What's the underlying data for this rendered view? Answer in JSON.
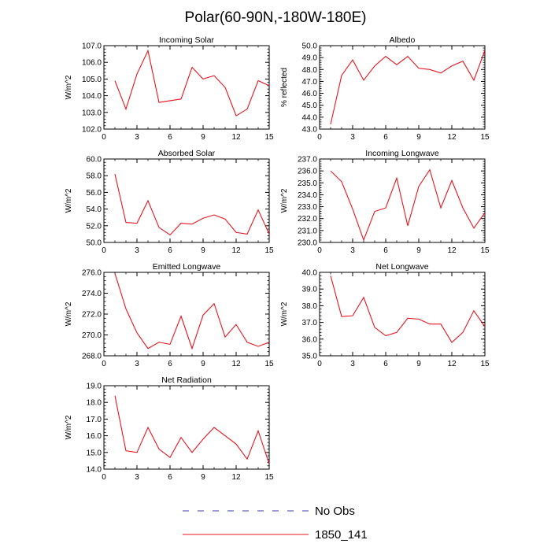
{
  "figure": {
    "title": "Polar(60-90N,-180W-180E)"
  },
  "legend": {
    "items": [
      {
        "label": "No Obs",
        "color": "#3d3da8",
        "dash": true
      },
      {
        "label": "1850_141",
        "color": "#e8141e",
        "dash": false
      }
    ]
  },
  "chart_data": [
    {
      "type": "line",
      "title": "Incoming Solar",
      "ylabel": "W/m^2",
      "xlim": [
        0,
        15
      ],
      "xticks": [
        "0",
        "3",
        "6",
        "9",
        "12",
        "15"
      ],
      "ylim": [
        102.0,
        107.0
      ],
      "yticks": [
        "102.0",
        "103.0",
        "104.0",
        "105.0",
        "106.0",
        "107.0"
      ],
      "x": [
        1,
        2,
        3,
        4,
        5,
        6,
        7,
        8,
        9,
        10,
        11,
        12,
        13,
        14,
        15
      ],
      "series": [
        {
          "name": "1850_141",
          "color": "#e8141e",
          "values": [
            104.9,
            103.2,
            105.3,
            106.7,
            103.6,
            103.7,
            103.8,
            105.7,
            105.0,
            105.2,
            104.5,
            102.8,
            103.2,
            104.9,
            104.6
          ]
        }
      ]
    },
    {
      "type": "line",
      "title": "Albedo",
      "ylabel": "% reflected",
      "xlim": [
        0,
        15
      ],
      "xticks": [
        "0",
        "3",
        "6",
        "9",
        "12",
        "15"
      ],
      "ylim": [
        43.0,
        50.0
      ],
      "yticks": [
        "43.0",
        "44.0",
        "45.0",
        "46.0",
        "47.0",
        "48.0",
        "49.0",
        "50.0"
      ],
      "x": [
        1,
        2,
        3,
        4,
        5,
        6,
        7,
        8,
        9,
        10,
        11,
        12,
        13,
        14,
        15
      ],
      "series": [
        {
          "name": "1850_141",
          "color": "#e8141e",
          "values": [
            43.4,
            47.5,
            48.8,
            47.1,
            48.3,
            49.1,
            48.4,
            49.1,
            48.1,
            48.0,
            47.7,
            48.3,
            48.7,
            47.1,
            49.6
          ]
        }
      ]
    },
    {
      "type": "line",
      "title": "Absorbed Solar",
      "ylabel": "W/m^2",
      "xlim": [
        0,
        15
      ],
      "xticks": [
        "0",
        "3",
        "6",
        "9",
        "12",
        "15"
      ],
      "ylim": [
        50.0,
        60.0
      ],
      "yticks": [
        "50.0",
        "52.0",
        "54.0",
        "56.0",
        "58.0",
        "60.0"
      ],
      "x": [
        1,
        2,
        3,
        4,
        5,
        6,
        7,
        8,
        9,
        10,
        11,
        12,
        13,
        14,
        15
      ],
      "series": [
        {
          "name": "1850_141",
          "color": "#e8141e",
          "values": [
            58.2,
            52.4,
            52.3,
            55.0,
            51.8,
            50.9,
            52.3,
            52.2,
            52.9,
            53.3,
            52.8,
            51.2,
            51.0,
            53.9,
            51.0
          ]
        }
      ]
    },
    {
      "type": "line",
      "title": "Incoming Longwave",
      "ylabel": "W/m^2",
      "xlim": [
        0,
        15
      ],
      "xticks": [
        "0",
        "3",
        "6",
        "9",
        "12",
        "15"
      ],
      "ylim": [
        230.0,
        237.0
      ],
      "yticks": [
        "230.0",
        "231.0",
        "232.0",
        "233.0",
        "234.0",
        "235.0",
        "236.0",
        "237.0"
      ],
      "x": [
        1,
        2,
        3,
        4,
        5,
        6,
        7,
        8,
        9,
        10,
        11,
        12,
        13,
        14,
        15
      ],
      "series": [
        {
          "name": "1850_141",
          "color": "#e8141e",
          "values": [
            236.0,
            235.1,
            232.8,
            230.2,
            232.6,
            232.9,
            235.4,
            231.4,
            234.7,
            236.1,
            232.9,
            235.2,
            232.9,
            231.2,
            232.5
          ]
        }
      ]
    },
    {
      "type": "line",
      "title": "Emitted Longwave",
      "ylabel": "W/m^2",
      "xlim": [
        0,
        15
      ],
      "xticks": [
        "0",
        "3",
        "6",
        "9",
        "12",
        "15"
      ],
      "ylim": [
        268.0,
        276.0
      ],
      "yticks": [
        "268.0",
        "270.0",
        "272.0",
        "274.0",
        "276.0"
      ],
      "x": [
        1,
        2,
        3,
        4,
        5,
        6,
        7,
        8,
        9,
        10,
        11,
        12,
        13,
        14,
        15
      ],
      "series": [
        {
          "name": "1850_141",
          "color": "#e8141e",
          "values": [
            275.9,
            272.5,
            270.2,
            268.7,
            269.3,
            269.1,
            271.8,
            268.7,
            271.9,
            273.0,
            269.8,
            271.0,
            269.3,
            268.9,
            269.3
          ]
        }
      ]
    },
    {
      "type": "line",
      "title": "Net Longwave",
      "ylabel": "W/m^2",
      "xlim": [
        0,
        15
      ],
      "xticks": [
        "0",
        "3",
        "6",
        "9",
        "12",
        "15"
      ],
      "ylim": [
        35.0,
        40.0
      ],
      "yticks": [
        "35.0",
        "36.0",
        "37.0",
        "38.0",
        "39.0",
        "40.0"
      ],
      "x": [
        1,
        2,
        3,
        4,
        5,
        6,
        7,
        8,
        9,
        10,
        11,
        12,
        13,
        14,
        15
      ],
      "series": [
        {
          "name": "1850_141",
          "color": "#e8141e",
          "values": [
            39.8,
            37.35,
            37.4,
            38.5,
            36.7,
            36.2,
            36.4,
            37.25,
            37.2,
            36.9,
            36.9,
            35.8,
            36.4,
            37.7,
            36.75
          ]
        }
      ]
    },
    {
      "type": "line",
      "title": "Net Radiation",
      "ylabel": "W/m^2",
      "xlim": [
        0,
        15
      ],
      "xticks": [
        "0",
        "3",
        "6",
        "9",
        "12",
        "15"
      ],
      "ylim": [
        14.0,
        19.0
      ],
      "yticks": [
        "14.0",
        "15.0",
        "16.0",
        "17.0",
        "18.0",
        "19.0"
      ],
      "x": [
        1,
        2,
        3,
        4,
        5,
        6,
        7,
        8,
        9,
        10,
        11,
        12,
        13,
        14,
        15
      ],
      "series": [
        {
          "name": "1850_141",
          "color": "#e8141e",
          "values": [
            18.4,
            15.1,
            15.0,
            16.5,
            15.2,
            14.7,
            15.9,
            15.0,
            15.8,
            16.5,
            16.0,
            15.5,
            14.6,
            16.3,
            14.3
          ]
        }
      ]
    }
  ]
}
